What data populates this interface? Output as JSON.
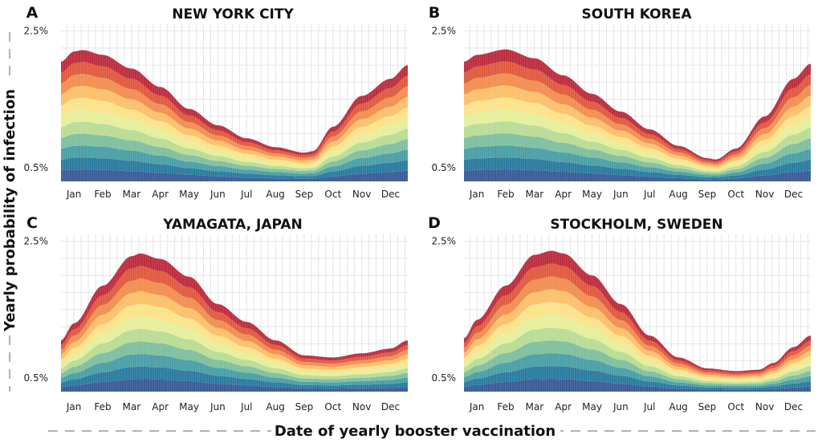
{
  "figure": {
    "x_axis_title": "Date of yearly booster vaccination",
    "y_axis_title": "Yearly probability of infection"
  },
  "colors": {
    "low": "#2f4f8f",
    "high": "#b2263a",
    "palette": [
      "#3b5b98",
      "#2a7ba0",
      "#4a9fa6",
      "#7fbf9f",
      "#b9dc95",
      "#e5ef9b",
      "#fbe38a",
      "#fbc06b",
      "#f28e50",
      "#e05a3e",
      "#bd2d3f"
    ],
    "grid": "#e4e4e4"
  },
  "chart_data": [
    {
      "type": "area",
      "letter": "A",
      "title": "NEW YORK CITY",
      "x_tick_labels": [
        "Jan",
        "Feb",
        "Mar",
        "Apr",
        "May",
        "Jun",
        "Jul",
        "Aug",
        "Sep",
        "Oct",
        "Nov",
        "Dec"
      ],
      "y_tick_labels": [
        "2.5%",
        "0.5%"
      ],
      "y_ticks": [
        2.5,
        0.5
      ],
      "ylim": [
        0.3,
        2.6
      ],
      "month_range": [
        0.55,
        12.6
      ],
      "grid": true,
      "stacked_bands": 11,
      "x": [
        0.55,
        1.0,
        1.3,
        2.0,
        3.0,
        4.0,
        5.0,
        6.0,
        7.0,
        8.0,
        9.0,
        9.3,
        10.0,
        11.0,
        12.0,
        12.6
      ],
      "y": [
        2.05,
        2.2,
        2.22,
        2.15,
        1.95,
        1.68,
        1.36,
        1.12,
        0.93,
        0.8,
        0.72,
        0.74,
        1.1,
        1.55,
        1.8,
        2.0
      ]
    },
    {
      "type": "area",
      "letter": "B",
      "title": "SOUTH KOREA",
      "x_tick_labels": [
        "Jan",
        "Feb",
        "Mar",
        "Apr",
        "May",
        "Jun",
        "Jul",
        "Aug",
        "Sep",
        "Oct",
        "Nov",
        "Dec"
      ],
      "y_tick_labels": [
        "2.5%",
        "0.5%"
      ],
      "y_ticks": [
        2.5,
        0.5
      ],
      "ylim": [
        0.3,
        2.6
      ],
      "month_range": [
        0.55,
        12.6
      ],
      "grid": true,
      "stacked_bands": 11,
      "x": [
        0.55,
        1.0,
        2.0,
        3.0,
        4.0,
        5.0,
        6.0,
        7.0,
        8.0,
        9.0,
        9.3,
        10.0,
        11.0,
        12.0,
        12.6
      ],
      "y": [
        2.05,
        2.15,
        2.23,
        2.1,
        1.85,
        1.58,
        1.32,
        1.06,
        0.82,
        0.64,
        0.62,
        0.78,
        1.25,
        1.8,
        2.02
      ]
    },
    {
      "type": "area",
      "letter": "C",
      "title": "YAMAGATA, JAPAN",
      "x_tick_labels": [
        "Jan",
        "Feb",
        "Mar",
        "Apr",
        "May",
        "Jun",
        "Jul",
        "Aug",
        "Sep",
        "Oct",
        "Nov",
        "Dec"
      ],
      "y_tick_labels": [
        "2.5%",
        "0.5%"
      ],
      "y_ticks": [
        2.5,
        0.5
      ],
      "ylim": [
        0.3,
        2.6
      ],
      "month_range": [
        0.55,
        12.6
      ],
      "grid": true,
      "stacked_bands": 11,
      "x": [
        0.55,
        1.0,
        2.0,
        3.0,
        3.3,
        4.0,
        5.0,
        6.0,
        7.0,
        8.0,
        9.0,
        10.0,
        11.0,
        12.0,
        12.6
      ],
      "y": [
        1.05,
        1.3,
        1.85,
        2.28,
        2.32,
        2.24,
        1.98,
        1.58,
        1.32,
        1.05,
        0.83,
        0.8,
        0.86,
        0.93,
        1.05
      ]
    },
    {
      "type": "area",
      "letter": "D",
      "title": "STOCKHOLM, SWEDEN",
      "x_tick_labels": [
        "Jan",
        "Feb",
        "Mar",
        "Apr",
        "May",
        "Jun",
        "Jul",
        "Aug",
        "Sep",
        "Oct",
        "Nov",
        "Dec"
      ],
      "y_tick_labels": [
        "2.5%",
        "0.5%"
      ],
      "y_ticks": [
        2.5,
        0.5
      ],
      "ylim": [
        0.3,
        2.6
      ],
      "month_range": [
        0.55,
        12.6
      ],
      "grid": true,
      "stacked_bands": 11,
      "x": [
        0.55,
        1.0,
        2.0,
        3.0,
        3.6,
        4.0,
        5.0,
        6.0,
        7.0,
        8.0,
        9.0,
        10.0,
        10.8,
        11.3,
        12.0,
        12.6
      ],
      "y": [
        1.08,
        1.35,
        1.85,
        2.3,
        2.36,
        2.32,
        2.0,
        1.58,
        1.12,
        0.8,
        0.64,
        0.6,
        0.62,
        0.72,
        0.95,
        1.12
      ]
    }
  ]
}
